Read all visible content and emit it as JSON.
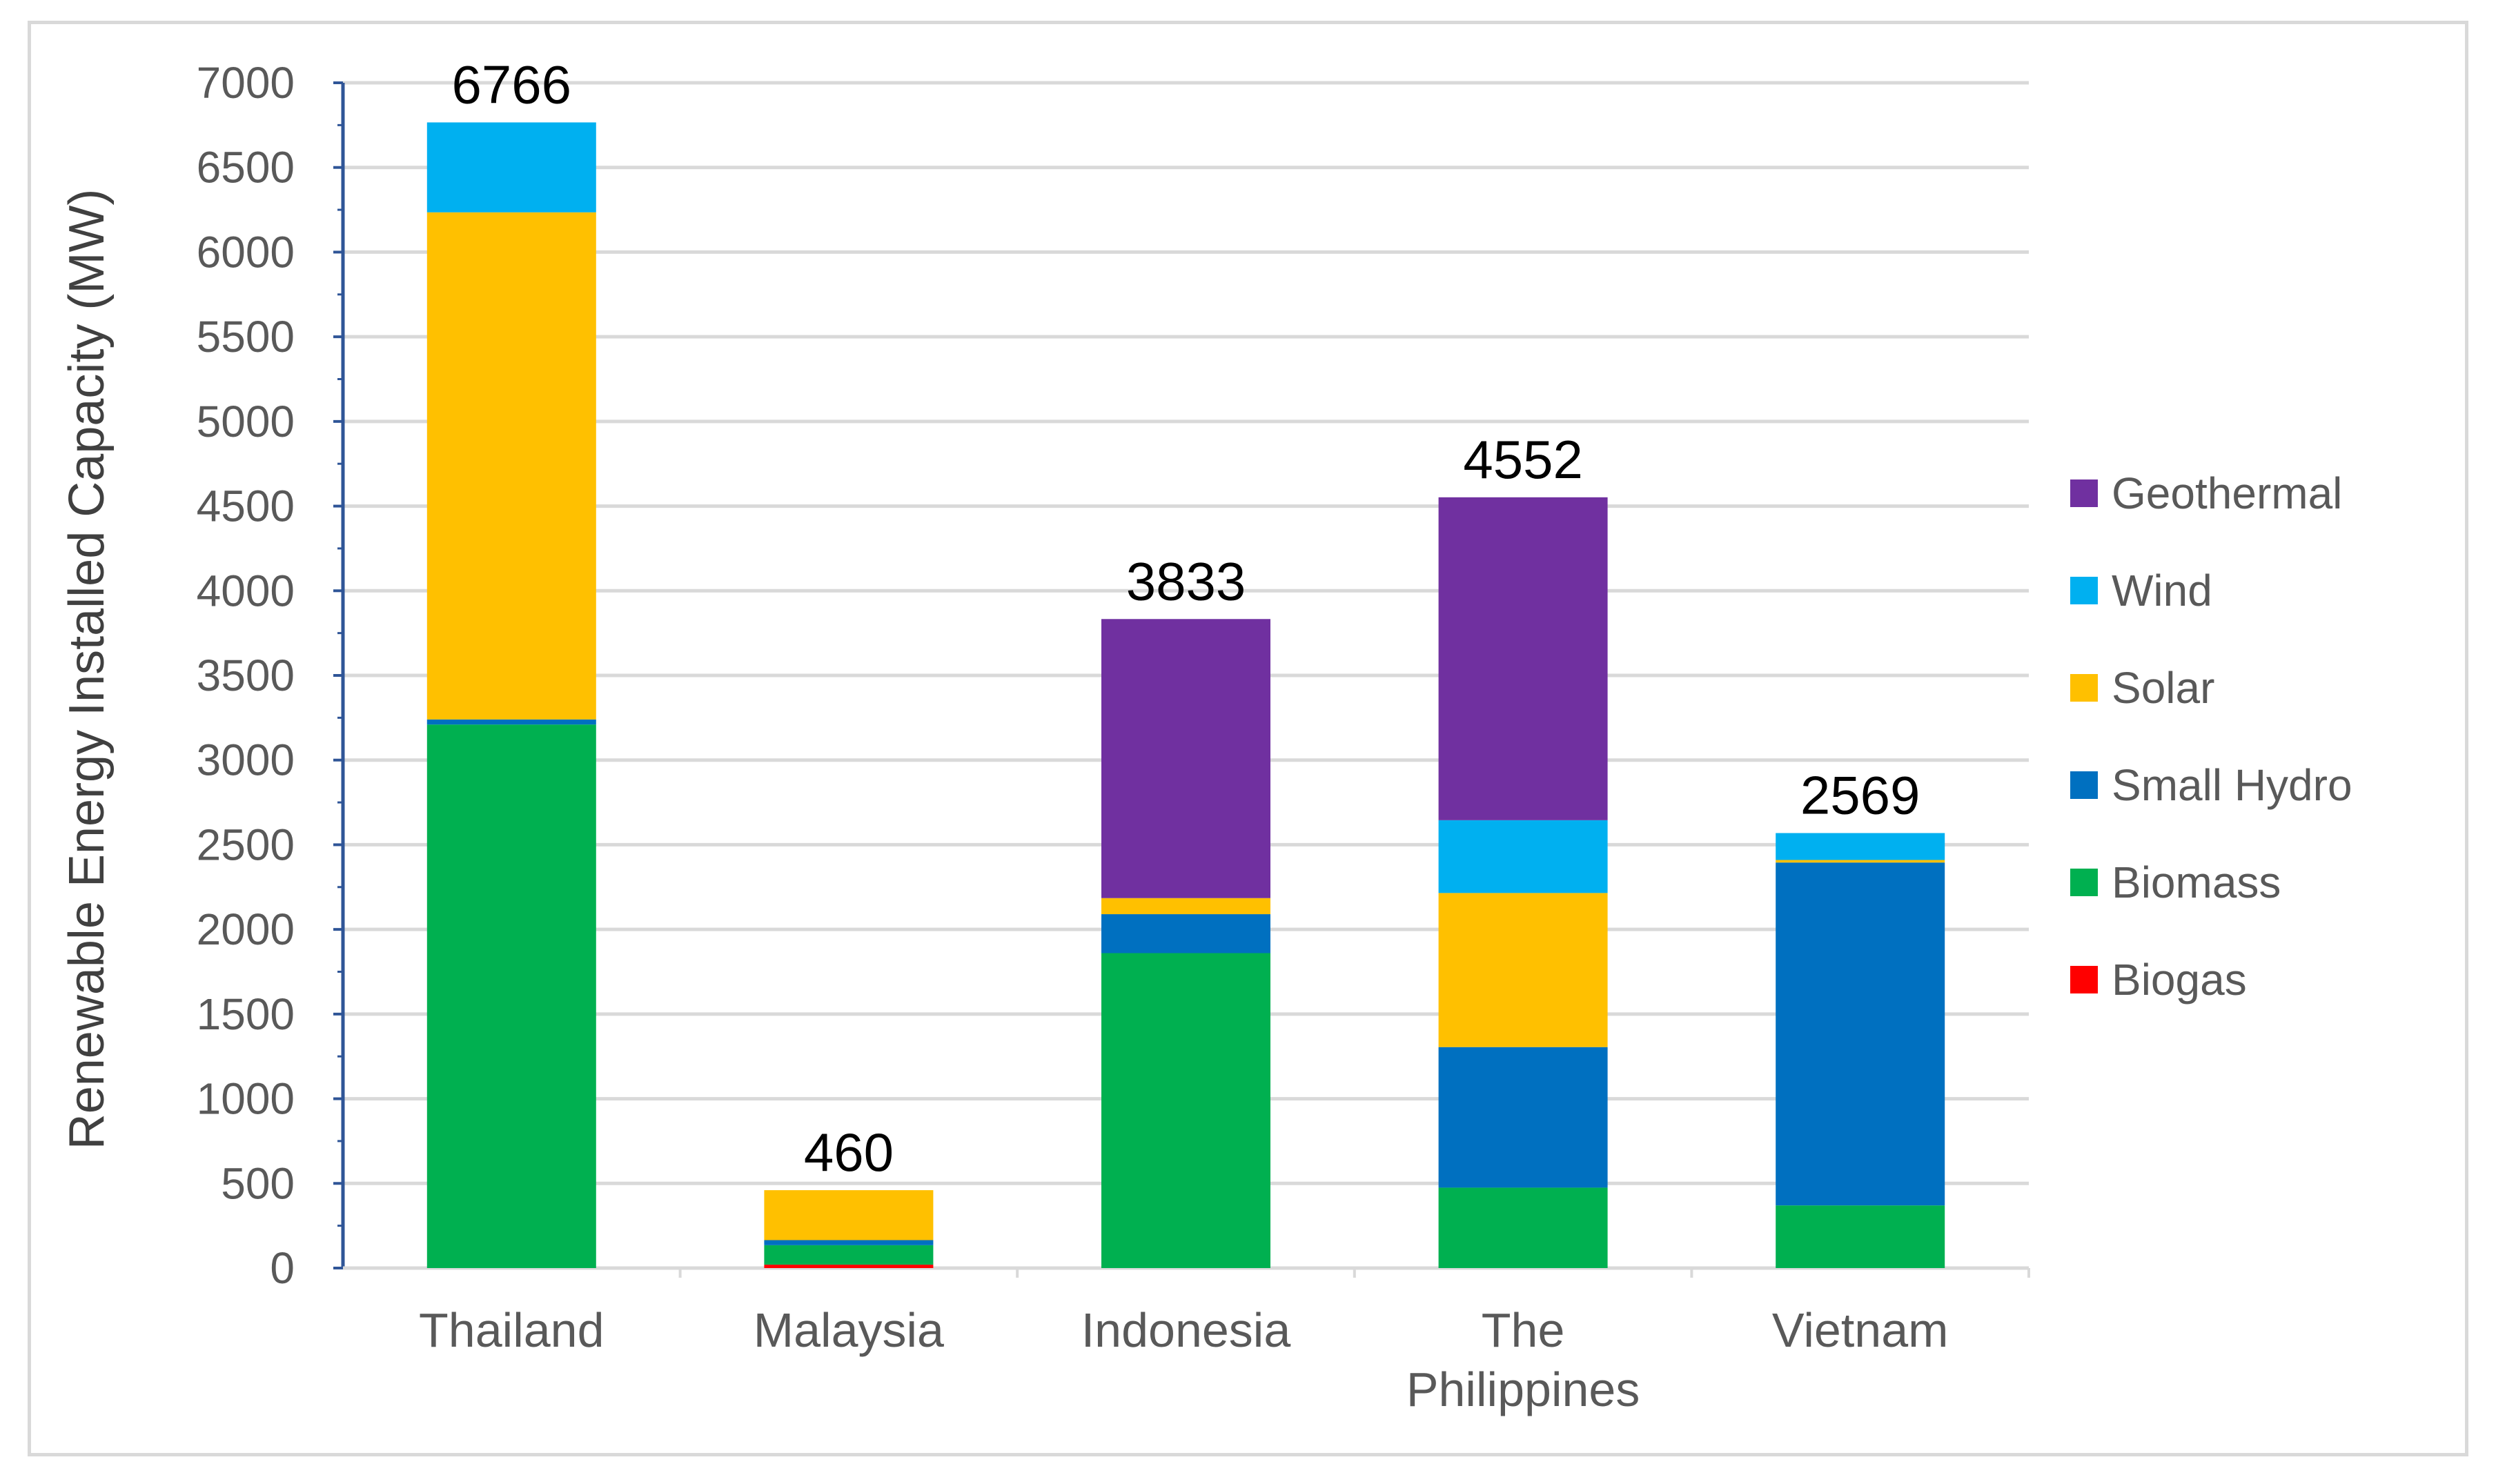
{
  "chart_data": {
    "type": "bar",
    "stacked": true,
    "title": "",
    "xlabel": "",
    "ylabel": "Renewable Energy Installed Capacity (MW)",
    "ylim": [
      0,
      7000
    ],
    "ytick_step": 500,
    "grid": true,
    "legend_position": "right",
    "categories": [
      [
        "Thailand"
      ],
      [
        "Malaysia"
      ],
      [
        "Indonesia"
      ],
      [
        "The",
        "Philippines"
      ],
      [
        "Vietnam"
      ]
    ],
    "totals": [
      "6766",
      "460",
      "3833",
      "4552",
      "2569"
    ],
    "series": [
      {
        "name": "Biogas",
        "color": "#ff0000",
        "values": [
          0,
          20,
          0,
          0,
          0
        ]
      },
      {
        "name": "Biomass",
        "color": "#00b050",
        "values": [
          3210,
          115,
          1860,
          475,
          370
        ]
      },
      {
        "name": "Small Hydro",
        "color": "#0070c0",
        "values": [
          30,
          30,
          230,
          830,
          2025
        ]
      },
      {
        "name": "Solar",
        "color": "#ffc000",
        "values": [
          2995,
          295,
          95,
          910,
          15
        ]
      },
      {
        "name": "Wind",
        "color": "#00b0f0",
        "values": [
          531,
          0,
          0,
          430,
          159
        ]
      },
      {
        "name": "Geothermal",
        "color": "#7030a0",
        "values": [
          0,
          0,
          1648,
          1907,
          0
        ]
      }
    ]
  }
}
